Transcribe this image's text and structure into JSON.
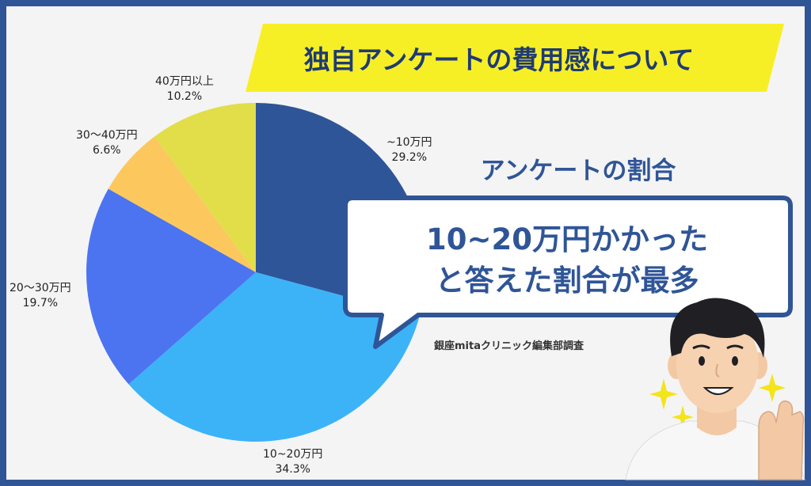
{
  "title": "独自アンケートの費用感について",
  "subtitle": "アンケートの割合",
  "callout": {
    "line1": "10~20万円かかった",
    "line2": "と答えた割合が最多"
  },
  "credit": "銀座mitaクリニック編集部調査",
  "colors": {
    "frame": "#2f5597",
    "banner": "#f7ef26",
    "accent": "#2f5597"
  },
  "chart_data": {
    "type": "pie",
    "title": "",
    "slices": [
      {
        "label": "~10万円",
        "value": 29.2,
        "value_label": "29.2%",
        "color": "#2e5597"
      },
      {
        "label": "10~20万円",
        "value": 34.3,
        "value_label": "34.3%",
        "color": "#3cb3f7"
      },
      {
        "label": "20〜30万円",
        "value": 19.7,
        "value_label": "19.7%",
        "color": "#4c74f0"
      },
      {
        "label": "30〜40万円",
        "value": 6.6,
        "value_label": "6.6%",
        "color": "#fcc85e"
      },
      {
        "label": "40万円以上",
        "value": 10.2,
        "value_label": "10.2%",
        "color": "#e1de4a"
      }
    ]
  }
}
